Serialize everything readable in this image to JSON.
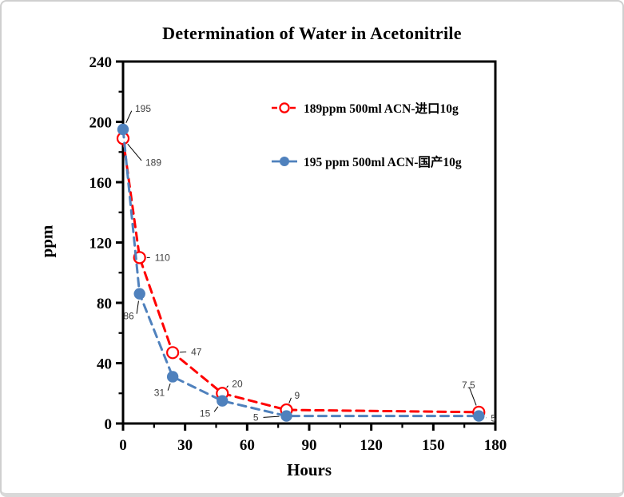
{
  "title": "Determination of Water in Acetonitrile",
  "chart_data": {
    "type": "line",
    "title": "Determination of Water in Acetonitrile",
    "xlabel": "Hours",
    "ylabel": "ppm",
    "xlim": [
      0,
      180
    ],
    "ylim": [
      0,
      240
    ],
    "xticks": [
      0,
      30,
      60,
      90,
      120,
      150,
      180
    ],
    "yticks": [
      0,
      40,
      80,
      120,
      160,
      200,
      240
    ],
    "x_minor_step": 15,
    "y_minor_step": 20,
    "grid": false,
    "legend_position": "inside-upper-right",
    "series": [
      {
        "name": "189ppm  500ml ACN-进口10g",
        "color": "#FF0000",
        "marker": "open-circle",
        "line_style": "dashed",
        "x": [
          0,
          8,
          24,
          48,
          79,
          172
        ],
        "y": [
          189,
          110,
          47,
          20,
          9,
          7.5
        ],
        "point_labels": [
          "189",
          "110",
          "47",
          "20",
          "9",
          "7.5"
        ],
        "label_layout": [
          [
            25,
            30,
            "start"
          ],
          [
            16,
            0,
            "start"
          ],
          [
            20,
            -1,
            "start"
          ],
          [
            9,
            -12,
            "start"
          ],
          [
            7,
            -18,
            "start"
          ],
          [
            -13,
            -34,
            "middle"
          ]
        ]
      },
      {
        "name": "195 ppm 500ml ACN-国产10g",
        "color": "#4F81BD",
        "marker": "filled-circle",
        "line_style": "dashed",
        "x": [
          0,
          8,
          24,
          48,
          79,
          172
        ],
        "y": [
          195,
          86,
          31,
          15,
          5,
          5
        ],
        "point_labels": [
          "195",
          "86",
          "31",
          "15",
          "5",
          "5"
        ],
        "label_layout": [
          [
            12,
            -26,
            "start"
          ],
          [
            -4,
            28,
            "end"
          ],
          [
            -7,
            20,
            "end"
          ],
          [
            -12,
            16,
            "end"
          ],
          [
            -32,
            2,
            "end"
          ],
          [
            12,
            3,
            "start"
          ]
        ]
      }
    ]
  }
}
